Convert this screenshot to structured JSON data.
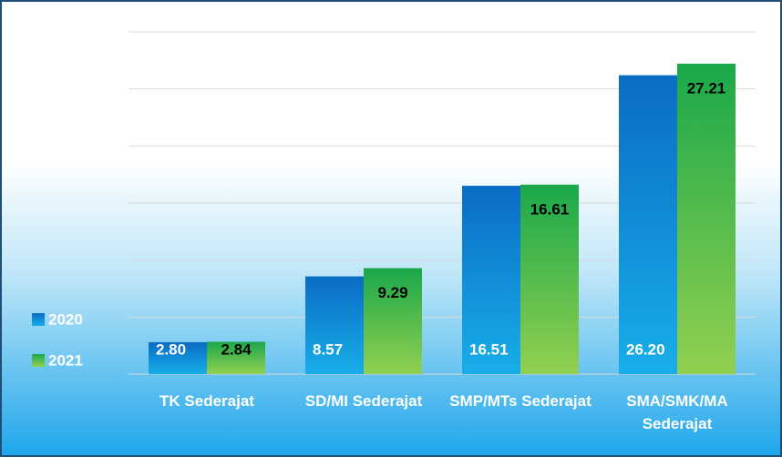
{
  "chart_data": {
    "type": "bar",
    "categories": [
      "TK Sederajat",
      "SD/MI Sederajat",
      "SMP/MTs Sederajat",
      "SMA/SMK/MA Sederajat"
    ],
    "series": [
      {
        "name": "2020",
        "color": "#0a6cc4",
        "values": [
          2.8,
          8.57,
          16.51,
          26.2
        ],
        "value_labels": [
          "2.80",
          "8.57",
          "16.51",
          "26.20"
        ]
      },
      {
        "name": "2021",
        "color": "#1aa84a",
        "values": [
          2.84,
          9.29,
          16.61,
          27.21
        ],
        "value_labels": [
          "2.84",
          "9.29",
          "16.61",
          "27.21"
        ]
      }
    ],
    "ylim": [
      0,
      30
    ],
    "yticks": [
      0,
      5,
      10,
      15,
      20,
      25,
      30
    ],
    "grid": true,
    "legend": "left"
  }
}
